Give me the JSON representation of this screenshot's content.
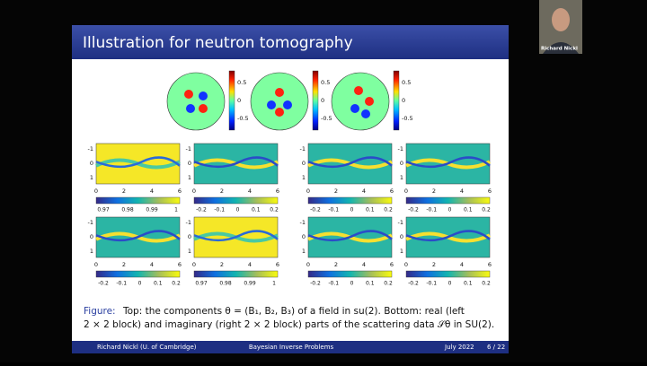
{
  "slide": {
    "title": "Illustration for neutron tomography",
    "circle_plots": [
      {
        "colorbar_ticks": [
          "0.5",
          "0",
          "-0.5"
        ]
      },
      {
        "colorbar_ticks": [
          "0.5",
          "0",
          "-0.5"
        ]
      },
      {
        "colorbar_ticks": [
          "0.5",
          "0",
          "-0.5"
        ]
      }
    ],
    "strip_plots": [
      {
        "y_ticks": [
          "-1",
          "0",
          "1"
        ],
        "x_ticks": [
          "0",
          "2",
          "4",
          "6"
        ],
        "colorbar_ticks": [
          "0.97",
          "0.98",
          "0.99",
          "1"
        ]
      },
      {
        "y_ticks": [
          "-1",
          "0",
          "1"
        ],
        "x_ticks": [
          "0",
          "2",
          "4",
          "6"
        ],
        "colorbar_ticks": [
          "-0.2",
          "-0.1",
          "0",
          "0.1",
          "0.2"
        ]
      },
      {
        "y_ticks": [
          "-1",
          "0",
          "1"
        ],
        "x_ticks": [
          "0",
          "2",
          "4",
          "6"
        ],
        "colorbar_ticks": [
          "-0.2",
          "-0.1",
          "0",
          "0.1",
          "0.2"
        ]
      },
      {
        "y_ticks": [
          "-1",
          "0",
          "1"
        ],
        "x_ticks": [
          "0",
          "2",
          "4",
          "6"
        ],
        "colorbar_ticks": [
          "-0.2",
          "-0.1",
          "0",
          "0.1",
          "0.2"
        ]
      },
      {
        "y_ticks": [
          "-1",
          "0",
          "1"
        ],
        "x_ticks": [
          "0",
          "2",
          "4",
          "6"
        ],
        "colorbar_ticks": [
          "-0.2",
          "-0.1",
          "0",
          "0.1",
          "0.2"
        ]
      },
      {
        "y_ticks": [
          "-1",
          "0",
          "1"
        ],
        "x_ticks": [
          "0",
          "2",
          "4",
          "6"
        ],
        "colorbar_ticks": [
          "0.97",
          "0.98",
          "0.99",
          "1"
        ]
      },
      {
        "y_ticks": [
          "-1",
          "0",
          "1"
        ],
        "x_ticks": [
          "0",
          "2",
          "4",
          "6"
        ],
        "colorbar_ticks": [
          "-0.2",
          "-0.1",
          "0",
          "0.1",
          "0.2"
        ]
      },
      {
        "y_ticks": [
          "-1",
          "0",
          "1"
        ],
        "x_ticks": [
          "0",
          "2",
          "4",
          "6"
        ],
        "colorbar_ticks": [
          "-0.2",
          "-0.1",
          "0",
          "0.1",
          "0.2"
        ]
      }
    ],
    "caption": {
      "label": "Figure:",
      "line1": "Top: the components θ = (B₁, B₂, B₃) of a field in su(2).  Bottom: real (left",
      "line2": "2 × 2 block) and imaginary (right 2 × 2 block) parts of the scattering data 𝒮θ in SU(2)."
    },
    "footer": {
      "author": "Richard Nickl (U. of Cambridge)",
      "talk": "Bayesian Inverse Problems",
      "date": "July 2022",
      "page": "6 / 22"
    }
  },
  "participant": {
    "name": "Richard Nickl"
  }
}
